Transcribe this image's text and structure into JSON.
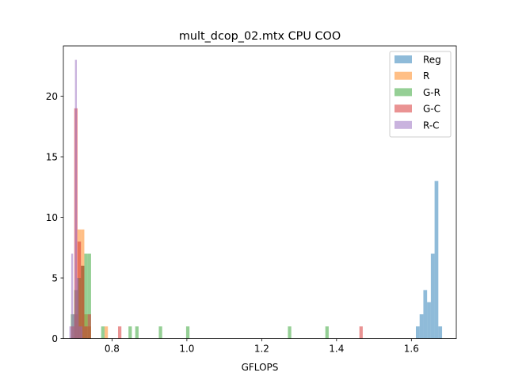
{
  "chart_data": {
    "type": "histogram",
    "title": "mult_dcop_02.mtx CPU COO",
    "xlabel": "GFLOPS",
    "ylabel": "",
    "xlim": [
      0.67,
      1.72
    ],
    "ylim": [
      0,
      24.15
    ],
    "xticks": [
      0.8,
      1.0,
      1.2,
      1.4,
      1.6
    ],
    "xtick_labels": [
      "0.8",
      "1.0",
      "1.2",
      "1.4",
      "1.6"
    ],
    "yticks": [
      0,
      5,
      10,
      15,
      20
    ],
    "ytick_labels": [
      "0",
      "5",
      "10",
      "15",
      "20"
    ],
    "grid": false,
    "legend_position": "upper right",
    "alpha": 0.5,
    "series": [
      {
        "name": "Reg",
        "color": "#1f77b4",
        "bins": [
          {
            "x0": 1.612,
            "x1": 1.622,
            "count": 1
          },
          {
            "x0": 1.622,
            "x1": 1.632,
            "count": 2
          },
          {
            "x0": 1.632,
            "x1": 1.642,
            "count": 4
          },
          {
            "x0": 1.642,
            "x1": 1.652,
            "count": 3
          },
          {
            "x0": 1.652,
            "x1": 1.662,
            "count": 7
          },
          {
            "x0": 1.662,
            "x1": 1.672,
            "count": 13
          },
          {
            "x0": 1.672,
            "x1": 1.682,
            "count": 1
          }
        ]
      },
      {
        "name": "R",
        "color": "#ff7f0e",
        "bins": [
          {
            "x0": 0.699,
            "x1": 0.708,
            "count": 2
          },
          {
            "x0": 0.708,
            "x1": 0.717,
            "count": 9
          },
          {
            "x0": 0.717,
            "x1": 0.726,
            "count": 9
          },
          {
            "x0": 0.726,
            "x1": 0.735,
            "count": 2
          },
          {
            "x0": 0.735,
            "x1": 0.744,
            "count": 1
          },
          {
            "x0": 0.78,
            "x1": 0.789,
            "count": 1
          }
        ]
      },
      {
        "name": "G-R",
        "color": "#2ca02c",
        "bins": [
          {
            "x0": 0.69,
            "x1": 0.699,
            "count": 2
          },
          {
            "x0": 0.699,
            "x1": 0.708,
            "count": 4
          },
          {
            "x0": 0.708,
            "x1": 0.717,
            "count": 5
          },
          {
            "x0": 0.717,
            "x1": 0.726,
            "count": 6
          },
          {
            "x0": 0.726,
            "x1": 0.735,
            "count": 7
          },
          {
            "x0": 0.735,
            "x1": 0.744,
            "count": 7
          },
          {
            "x0": 0.771,
            "x1": 0.78,
            "count": 1
          },
          {
            "x0": 0.844,
            "x1": 0.853,
            "count": 1
          },
          {
            "x0": 0.862,
            "x1": 0.871,
            "count": 1
          },
          {
            "x0": 0.925,
            "x1": 0.934,
            "count": 1
          },
          {
            "x0": 0.998,
            "x1": 1.007,
            "count": 1
          },
          {
            "x0": 1.27,
            "x1": 1.279,
            "count": 1
          },
          {
            "x0": 1.37,
            "x1": 1.379,
            "count": 1
          }
        ]
      },
      {
        "name": "G-C",
        "color": "#d62728",
        "bins": [
          {
            "x0": 0.69,
            "x1": 0.699,
            "count": 1
          },
          {
            "x0": 0.699,
            "x1": 0.708,
            "count": 19
          },
          {
            "x0": 0.708,
            "x1": 0.717,
            "count": 8
          },
          {
            "x0": 0.717,
            "x1": 0.726,
            "count": 6
          },
          {
            "x0": 0.726,
            "x1": 0.735,
            "count": 1
          },
          {
            "x0": 0.735,
            "x1": 0.744,
            "count": 2
          },
          {
            "x0": 0.816,
            "x1": 0.825,
            "count": 1
          },
          {
            "x0": 1.461,
            "x1": 1.47,
            "count": 1
          }
        ]
      },
      {
        "name": "R-C",
        "color": "#9467bd",
        "bins": [
          {
            "x0": 0.686,
            "x1": 0.691,
            "count": 1
          },
          {
            "x0": 0.691,
            "x1": 0.696,
            "count": 7
          },
          {
            "x0": 0.696,
            "x1": 0.701,
            "count": 2
          },
          {
            "x0": 0.701,
            "x1": 0.706,
            "count": 23
          },
          {
            "x0": 0.706,
            "x1": 0.711,
            "count": 5
          },
          {
            "x0": 0.711,
            "x1": 0.716,
            "count": 1
          },
          {
            "x0": 0.716,
            "x1": 0.721,
            "count": 1
          }
        ]
      }
    ]
  }
}
